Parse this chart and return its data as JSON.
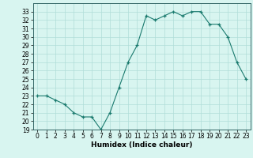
{
  "x": [
    0,
    1,
    2,
    3,
    4,
    5,
    6,
    7,
    8,
    9,
    10,
    11,
    12,
    13,
    14,
    15,
    16,
    17,
    18,
    19,
    20,
    21,
    22,
    23
  ],
  "y": [
    23,
    23,
    22.5,
    22,
    21,
    20.5,
    20.5,
    19,
    21,
    24,
    27,
    29,
    32.5,
    32,
    32.5,
    33,
    32.5,
    33,
    33,
    31.5,
    31.5,
    30,
    27,
    25
  ],
  "line_color": "#1a7a6e",
  "marker_color": "#1a7a6e",
  "bg_color": "#d8f5f0",
  "grid_color": "#b0ddd8",
  "xlabel": "Humidex (Indice chaleur)",
  "ylim": [
    19,
    34
  ],
  "xlim": [
    -0.5,
    23.5
  ],
  "yticks": [
    19,
    20,
    21,
    22,
    23,
    24,
    25,
    26,
    27,
    28,
    29,
    30,
    31,
    32,
    33
  ],
  "xticks": [
    0,
    1,
    2,
    3,
    4,
    5,
    6,
    7,
    8,
    9,
    10,
    11,
    12,
    13,
    14,
    15,
    16,
    17,
    18,
    19,
    20,
    21,
    22,
    23
  ],
  "tick_fontsize": 5.5,
  "label_fontsize": 6.5
}
